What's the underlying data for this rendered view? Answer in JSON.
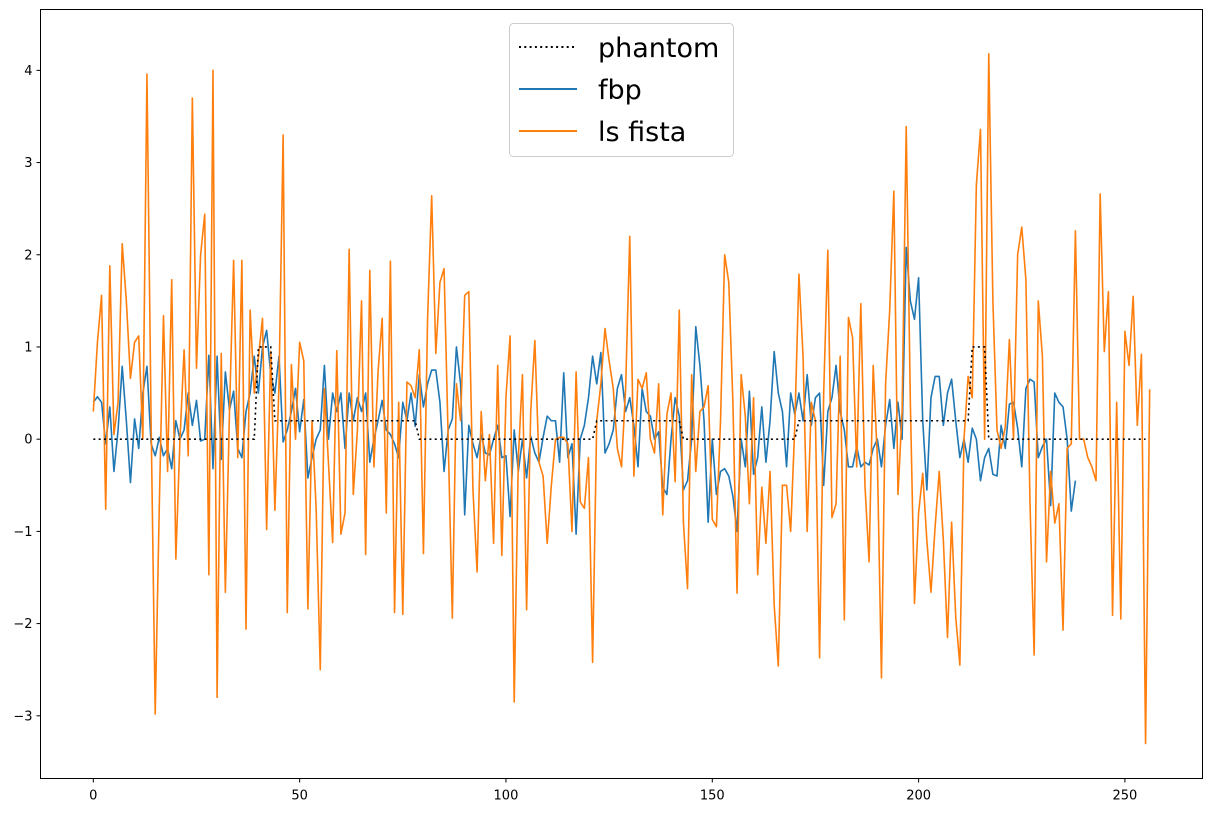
{
  "chart_data": {
    "type": "line",
    "title": "",
    "xlabel": "",
    "ylabel": "",
    "xlim": [
      -12.8,
      268.8
    ],
    "ylim": [
      -3.68,
      4.66
    ],
    "xticks": [
      0,
      50,
      100,
      150,
      200,
      250
    ],
    "yticks": [
      -3,
      -2,
      -1,
      0,
      1,
      2,
      3,
      4
    ],
    "grid": false,
    "legend_position": "upper center",
    "x": "0..255 (sample index)",
    "series": [
      {
        "name": "phantom",
        "color": "#000000",
        "style": "dotted",
        "segments": [
          {
            "from": 0,
            "to": 39,
            "value": 0
          },
          {
            "from": 40,
            "to": 43,
            "value": 1
          },
          {
            "from": 44,
            "to": 78,
            "value": 0.2
          },
          {
            "from": 79,
            "to": 121,
            "value": 0
          },
          {
            "from": 122,
            "to": 142,
            "value": 0.2
          },
          {
            "from": 143,
            "to": 170,
            "value": 0
          },
          {
            "from": 171,
            "to": 212,
            "value": 0.2
          },
          {
            "from": 213,
            "to": 216,
            "value": 1
          },
          {
            "from": 217,
            "to": 255,
            "value": 0
          }
        ]
      },
      {
        "name": "fbp",
        "color": "#1f77b4",
        "style": "solid",
        "values": [
          0.4,
          0.46,
          0.4,
          -0.05,
          0.35,
          -0.35,
          0.1,
          0.79,
          0.2,
          -0.47,
          0.22,
          -0.1,
          0.5,
          0.79,
          -0.05,
          -0.18,
          0.02,
          -0.18,
          -0.1,
          -0.32,
          0.2,
          0.0,
          0.1,
          0.5,
          0.15,
          0.42,
          -0.02,
          0.0,
          0.91,
          -0.32,
          0.9,
          -0.22,
          0.73,
          0.32,
          0.52,
          -0.1,
          -0.2,
          0.3,
          0.5,
          0.9,
          0.5,
          1.0,
          1.18,
          0.7,
          0.5,
          0.9,
          -0.03,
          0.1,
          0.3,
          0.55,
          0.08,
          0.43,
          -0.42,
          -0.2,
          0.0,
          0.1,
          0.8,
          0.0,
          0.5,
          0.3,
          0.5,
          -0.1,
          0.5,
          0.2,
          0.45,
          0.3,
          0.5,
          -0.25,
          0.0,
          0.2,
          0.42,
          0.1,
          0.05,
          -0.05,
          -0.2,
          0.4,
          0.2,
          0.5,
          0.14,
          0.7,
          0.35,
          0.6,
          0.75,
          0.75,
          0.4,
          -0.35,
          0.1,
          0.22,
          1.0,
          0.6,
          -0.82,
          0.15,
          -0.05,
          -0.2,
          0.05,
          -0.15,
          -0.17,
          0.0,
          0.15,
          -0.2,
          -0.18,
          -0.84,
          0.1,
          -0.35,
          0.0,
          -0.42,
          0.03,
          -0.15,
          -0.25,
          0.02,
          0.25,
          0.2,
          0.2,
          -0.25,
          0.72,
          -0.2,
          -0.05,
          -1.03,
          0.0,
          0.15,
          0.45,
          0.9,
          0.6,
          0.94,
          -0.15,
          -0.05,
          0.1,
          0.55,
          0.7,
          0.3,
          0.45,
          0.15,
          -0.3,
          0.55,
          0.3,
          0.25,
          0.0,
          0.08,
          -0.52,
          -0.6,
          0.0,
          0.45,
          0.25,
          -0.55,
          -0.45,
          0.0,
          1.22,
          0.8,
          0.2,
          -0.9,
          0.0,
          -0.6,
          -0.35,
          -0.32,
          -0.4,
          -0.62,
          -1.0,
          0.0,
          -0.3,
          0.52,
          -0.38,
          -0.2,
          0.35,
          -0.25,
          0.2,
          0.95,
          0.5,
          0.3,
          -0.3,
          0.5,
          0.27,
          0.5,
          0.2,
          0.7,
          0.15,
          0.45,
          0.5,
          -0.5,
          0.3,
          0.45,
          0.8,
          0.3,
          0.1,
          -0.3,
          -0.3,
          -0.08,
          -0.3,
          -0.25,
          -0.28,
          -0.1,
          0.0,
          -0.3,
          0.15,
          0.43,
          -0.1,
          0.4,
          0.0,
          2.08,
          1.5,
          1.3,
          1.75,
          0.2,
          -0.55,
          0.45,
          0.68,
          0.68,
          0.15,
          0.5,
          0.65,
          0.2,
          -0.2,
          0.0,
          -0.25,
          0.12,
          0.0,
          -0.45,
          -0.2,
          -0.1,
          -0.38,
          -0.4,
          0.15,
          -0.1,
          0.38,
          0.4,
          0.12,
          -0.3,
          0.55,
          0.65,
          0.62,
          -0.2,
          -0.08,
          0.0,
          -0.72,
          0.5,
          0.4,
          0.35,
          0.0,
          -0.78,
          -0.45
        ]
      },
      {
        "name": "ls fista",
        "color": "#ff7f0e",
        "style": "solid",
        "values": [
          0.3,
          1.05,
          1.56,
          -0.76,
          1.88,
          0.05,
          0.4,
          2.12,
          1.5,
          0.66,
          1.05,
          1.12,
          0.0,
          3.96,
          0.2,
          -2.98,
          -0.7,
          1.34,
          -0.35,
          1.73,
          -1.3,
          0.0,
          0.97,
          -0.18,
          3.7,
          0.77,
          2.0,
          2.44,
          -1.47,
          4.0,
          -2.8,
          0.93,
          -1.66,
          0.3,
          1.94,
          -0.2,
          1.94,
          -2.06,
          1.4,
          0.5,
          0.88,
          1.31,
          -0.98,
          0.95,
          -0.77,
          0.6,
          3.3,
          -1.88,
          0.81,
          0.0,
          1.05,
          0.85,
          -1.84,
          0.2,
          -0.75,
          -2.5,
          0.55,
          -0.27,
          -1.12,
          0.96,
          -1.03,
          -0.8,
          2.06,
          -0.6,
          0.1,
          1.5,
          -1.25,
          1.83,
          -0.3,
          0.73,
          1.31,
          -0.8,
          1.93,
          -1.88,
          0.4,
          -1.9,
          0.62,
          0.58,
          0.45,
          0.97,
          -1.24,
          1.3,
          2.64,
          0.93,
          1.7,
          1.85,
          0.0,
          -1.94,
          0.6,
          0.2,
          1.56,
          1.6,
          -0.55,
          -1.44,
          0.3,
          -0.45,
          0.05,
          -1.13,
          0.8,
          -1.26,
          0.46,
          1.12,
          -2.85,
          -0.2,
          0.7,
          -1.85,
          0.3,
          1.07,
          -0.25,
          -0.4,
          -1.13,
          -0.5,
          0.0,
          0.02,
          0.02,
          -0.05,
          -1.0,
          0.73,
          -0.68,
          -0.75,
          -0.2,
          -2.42,
          0.2,
          0.6,
          1.2,
          0.85,
          0.55,
          -0.1,
          -0.3,
          0.55,
          2.2,
          -0.4,
          0.65,
          0.55,
          0.72,
          0.0,
          -0.15,
          0.6,
          -0.82,
          0.27,
          0.5,
          -0.46,
          1.4,
          -0.9,
          -1.62,
          0.7,
          -0.35,
          0.3,
          0.35,
          0.58,
          -0.87,
          -0.95,
          0.2,
          2.0,
          1.7,
          0.4,
          -1.67,
          0.7,
          0.25,
          -0.7,
          0.45,
          -1.47,
          -0.52,
          -1.13,
          -0.35,
          -1.8,
          -2.46,
          -0.5,
          -0.5,
          -1.0,
          0.15,
          1.79,
          0.9,
          -1.0,
          0.4,
          0.2,
          -2.37,
          0.5,
          2.05,
          -0.85,
          -0.7,
          0.9,
          -1.96,
          1.32,
          1.1,
          -0.3,
          1.47,
          -0.5,
          -1.33,
          0.8,
          -0.2,
          -2.59,
          0.6,
          1.4,
          2.69,
          -0.6,
          0.3,
          3.39,
          0.4,
          -1.78,
          -0.8,
          -0.37,
          -1.1,
          -1.66,
          -0.95,
          -0.35,
          -1.1,
          -2.15,
          -0.9,
          -1.93,
          -2.45,
          0.0,
          0.68,
          0.45,
          2.76,
          3.36,
          0.0,
          4.18,
          1.5,
          0.1,
          -0.1,
          0.13,
          1.08,
          0.0,
          2.0,
          2.3,
          1.73,
          -0.7,
          -2.34,
          1.5,
          0.9,
          -1.33,
          -0.35,
          -0.91,
          -0.7,
          -2.07,
          -0.1,
          -0.05,
          2.26,
          0.0,
          0.0,
          -0.2,
          -0.3,
          -0.45,
          2.66,
          0.95,
          1.6,
          -1.91,
          0.4,
          -1.95,
          1.17,
          0.8,
          1.55,
          0.15,
          0.92,
          -3.3,
          0.54
        ]
      }
    ],
    "legend": [
      "phantom",
      "fbp",
      "ls fista"
    ]
  },
  "axes": {
    "x_tick_labels": [
      "0",
      "50",
      "100",
      "150",
      "200",
      "250"
    ],
    "y_tick_labels": [
      "−3",
      "−2",
      "−1",
      "0",
      "1",
      "2",
      "3",
      "4"
    ]
  },
  "legend": {
    "items": [
      {
        "label": "phantom",
        "color": "#000000",
        "style": "dotted"
      },
      {
        "label": "fbp",
        "color": "#1f77b4",
        "style": "solid"
      },
      {
        "label": "ls fista",
        "color": "#ff7f0e",
        "style": "solid"
      }
    ]
  }
}
